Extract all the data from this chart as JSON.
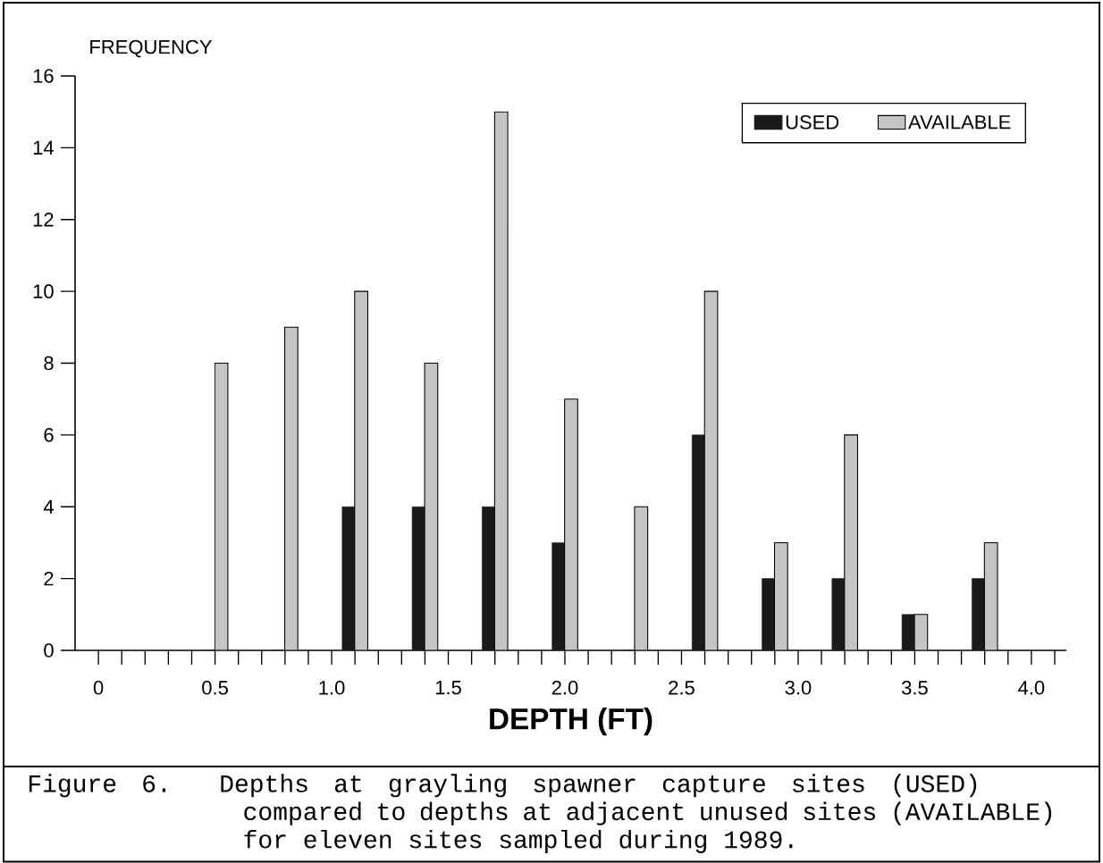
{
  "chart_data": {
    "type": "bar",
    "xlabel": "DEPTH (FT)",
    "ylabel": "FREQUENCY",
    "x": [
      0.5,
      0.8,
      1.1,
      1.4,
      1.7,
      2.0,
      2.3,
      2.6,
      2.9,
      3.2,
      3.5,
      3.8
    ],
    "series": [
      {
        "name": "USED",
        "color": "#1a1a1a",
        "values": [
          0,
          0,
          4,
          4,
          4,
          3,
          0,
          6,
          2,
          2,
          1,
          2
        ]
      },
      {
        "name": "AVAILABLE",
        "color": "#c4c4c4",
        "values": [
          8,
          9,
          10,
          8,
          15,
          7,
          4,
          10,
          3,
          6,
          1,
          3
        ]
      }
    ],
    "xlim": [
      -0.1,
      4.15
    ],
    "xticks": [
      {
        "value": 0,
        "label": "0"
      },
      {
        "value": 0.1,
        "label": null
      },
      {
        "value": 0.2,
        "label": null
      },
      {
        "value": 0.3,
        "label": null
      },
      {
        "value": 0.4,
        "label": null
      },
      {
        "value": 0.5,
        "label": "0.5"
      },
      {
        "value": 0.6,
        "label": null
      },
      {
        "value": 0.7,
        "label": null
      },
      {
        "value": 0.8,
        "label": null
      },
      {
        "value": 0.9,
        "label": null
      },
      {
        "value": 1.0,
        "label": "1.0"
      },
      {
        "value": 1.1,
        "label": null
      },
      {
        "value": 1.2,
        "label": null
      },
      {
        "value": 1.3,
        "label": null
      },
      {
        "value": 1.4,
        "label": null
      },
      {
        "value": 1.5,
        "label": "1.5"
      },
      {
        "value": 1.6,
        "label": null
      },
      {
        "value": 1.7,
        "label": null
      },
      {
        "value": 1.8,
        "label": null
      },
      {
        "value": 1.9,
        "label": null
      },
      {
        "value": 2.0,
        "label": "2.0"
      },
      {
        "value": 2.1,
        "label": null
      },
      {
        "value": 2.2,
        "label": null
      },
      {
        "value": 2.3,
        "label": null
      },
      {
        "value": 2.4,
        "label": null
      },
      {
        "value": 2.5,
        "label": "2.5"
      },
      {
        "value": 2.6,
        "label": null
      },
      {
        "value": 2.7,
        "label": null
      },
      {
        "value": 2.8,
        "label": null
      },
      {
        "value": 2.9,
        "label": null
      },
      {
        "value": 3.0,
        "label": "3.0"
      },
      {
        "value": 3.1,
        "label": null
      },
      {
        "value": 3.2,
        "label": null
      },
      {
        "value": 3.3,
        "label": null
      },
      {
        "value": 3.4,
        "label": null
      },
      {
        "value": 3.5,
        "label": "3.5"
      },
      {
        "value": 3.6,
        "label": null
      },
      {
        "value": 3.7,
        "label": null
      },
      {
        "value": 3.8,
        "label": null
      },
      {
        "value": 3.9,
        "label": null
      },
      {
        "value": 4.0,
        "label": "4.0"
      },
      {
        "value": 4.1,
        "label": null
      }
    ],
    "ylim": [
      0,
      16
    ],
    "yticks": [
      0,
      2,
      4,
      6,
      8,
      10,
      12,
      14,
      16
    ],
    "legend": "top right",
    "annotations": [
      "Figure 6. Depths at grayling spawner capture sites (USED) compared to depths at adjacent unused sites (AVAILABLE) for eleven sites sampled during 1989."
    ]
  }
}
